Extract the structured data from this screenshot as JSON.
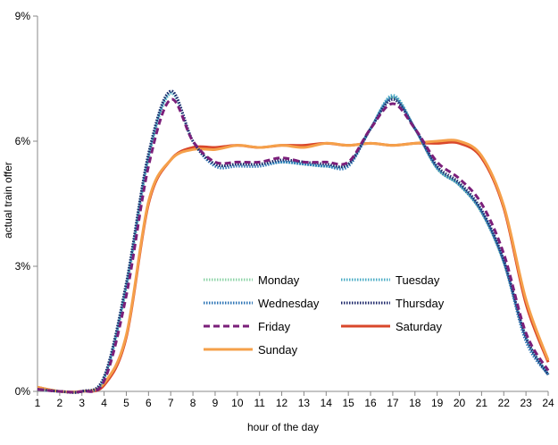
{
  "chart_data": {
    "type": "line",
    "xlabel": "hour of the day",
    "ylabel": "actual train offer",
    "xlim": [
      1,
      24
    ],
    "ylim": [
      0,
      9
    ],
    "x_ticks": [
      "1",
      "2",
      "3",
      "4",
      "5",
      "6",
      "7",
      "8",
      "9",
      "10",
      "11",
      "12",
      "13",
      "14",
      "15",
      "16",
      "17",
      "18",
      "19",
      "20",
      "21",
      "22",
      "23",
      "24"
    ],
    "y_ticks": [
      {
        "value": 0,
        "label": "0%"
      },
      {
        "value": 3,
        "label": "3%"
      },
      {
        "value": 6,
        "label": "6%"
      },
      {
        "value": 9,
        "label": "9%"
      }
    ],
    "grid": false,
    "legend_position": "center",
    "x": [
      1,
      2,
      3,
      4,
      5,
      6,
      7,
      8,
      9,
      10,
      11,
      12,
      13,
      14,
      15,
      16,
      17,
      18,
      19,
      20,
      21,
      22,
      23,
      24
    ],
    "series": [
      {
        "name": "Monday",
        "color": "#8fd4a8",
        "style": "dotted",
        "values": [
          0.05,
          0.0,
          0.0,
          0.3,
          2.5,
          5.6,
          7.15,
          6.0,
          5.45,
          5.45,
          5.45,
          5.5,
          5.45,
          5.4,
          5.45,
          6.3,
          7.05,
          6.3,
          5.35,
          4.95,
          4.3,
          3.1,
          1.3,
          0.4
        ]
      },
      {
        "name": "Tuesday",
        "color": "#4bacc6",
        "style": "dotted",
        "values": [
          0.05,
          0.0,
          0.0,
          0.3,
          2.5,
          5.6,
          7.15,
          6.0,
          5.45,
          5.45,
          5.45,
          5.5,
          5.45,
          5.4,
          5.45,
          6.3,
          7.1,
          6.3,
          5.35,
          4.95,
          4.3,
          3.1,
          1.3,
          0.4
        ]
      },
      {
        "name": "Wednesday",
        "color": "#2e75b6",
        "style": "dotted",
        "values": [
          0.05,
          0.0,
          0.0,
          0.35,
          2.6,
          5.7,
          7.2,
          6.0,
          5.4,
          5.4,
          5.4,
          5.5,
          5.45,
          5.4,
          5.4,
          6.3,
          7.05,
          6.3,
          5.35,
          4.95,
          4.3,
          3.1,
          1.2,
          0.4
        ]
      },
      {
        "name": "Thursday",
        "color": "#1f2a6b",
        "style": "dotted",
        "values": [
          0.05,
          0.0,
          0.0,
          0.35,
          2.6,
          5.7,
          7.2,
          6.0,
          5.45,
          5.45,
          5.45,
          5.55,
          5.5,
          5.45,
          5.45,
          6.3,
          7.0,
          6.3,
          5.4,
          5.0,
          4.35,
          3.15,
          1.3,
          0.4
        ]
      },
      {
        "name": "Friday",
        "color": "#7b1f7a",
        "style": "dashed",
        "values": [
          0.05,
          0.0,
          0.0,
          0.25,
          2.3,
          5.4,
          7.0,
          6.0,
          5.5,
          5.5,
          5.5,
          5.6,
          5.5,
          5.5,
          5.5,
          6.3,
          6.9,
          6.3,
          5.5,
          5.1,
          4.5,
          3.3,
          1.4,
          0.5
        ]
      },
      {
        "name": "Saturday",
        "color": "#d9472b",
        "style": "solid",
        "values": [
          0.1,
          0.0,
          0.0,
          0.15,
          1.3,
          4.5,
          5.55,
          5.85,
          5.85,
          5.9,
          5.85,
          5.9,
          5.9,
          5.95,
          5.9,
          5.95,
          5.9,
          5.95,
          5.95,
          5.95,
          5.6,
          4.4,
          2.1,
          0.7
        ]
      },
      {
        "name": "Sunday",
        "color": "#f5a04a",
        "style": "solid",
        "values": [
          0.1,
          0.0,
          0.0,
          0.2,
          1.35,
          4.55,
          5.55,
          5.8,
          5.8,
          5.9,
          5.85,
          5.9,
          5.85,
          5.95,
          5.9,
          5.95,
          5.9,
          5.95,
          6.0,
          6.0,
          5.65,
          4.45,
          2.2,
          0.75
        ]
      }
    ]
  }
}
